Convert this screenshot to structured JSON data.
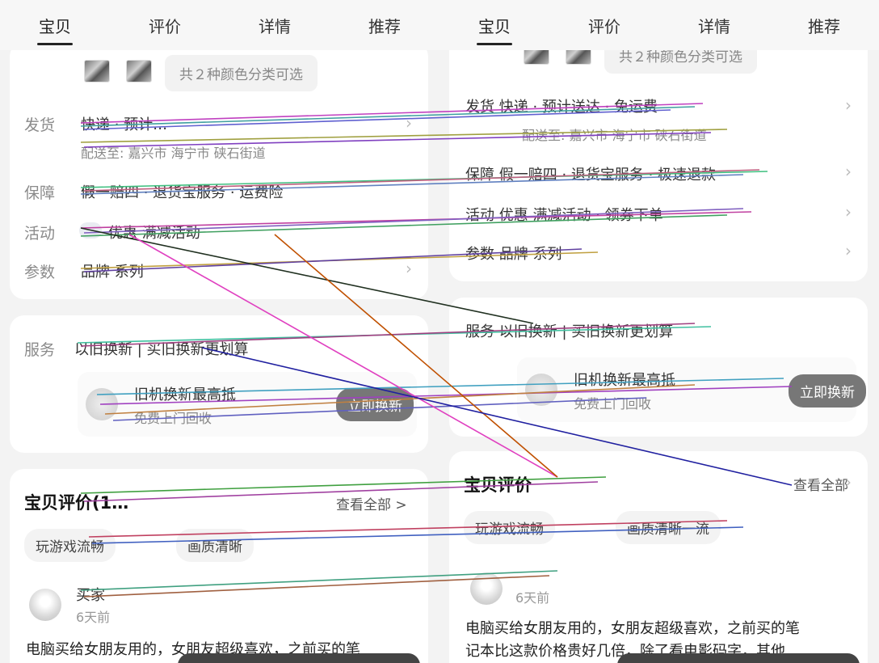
{
  "tabs": [
    "宝贝",
    "评价",
    "详情",
    "推荐"
  ],
  "left": {
    "color_tip": "共２种颜色分类可选",
    "ship_label": "发货",
    "ship_value": "快递 · 预计…",
    "ship_to": "配送至: 嘉兴市 海宁市 硖石街道",
    "guarantee_label": "保障",
    "guarantee_value": "假一赔四 · 退货宝服务 · 运费险",
    "activity_label": "活动",
    "activity_value": "优惠 满减活动",
    "params_label": "参数",
    "params_value": "品牌 系列",
    "service_label": "服务",
    "service_value": "以旧换新 | 买旧换新更划算",
    "trade_title": "旧机换新最高抵",
    "trade_sub": "免费上门回收",
    "trade_button": "立即换新",
    "reviews_title": "宝贝评价(1…",
    "reviews_link": "查看全部 >",
    "tag1": "玩游戏流畅",
    "tag2": "画质清晰",
    "reviewer": "买家",
    "time": "6天前",
    "review_text": "电脑买给女朋友用的，女朋友超级喜欢，之前买的笔"
  },
  "right": {
    "color_tip": "共２种颜色分类可选",
    "ship_value": "发货 快递 · 预计送达 · 免运费",
    "ship_to": "配送至: 嘉兴市 海宁市 硖石街道",
    "guarantee_value": "保障 假一赔四 · 退货宝服务 · 极速退款",
    "activity_value": "活动 优惠 满减活动 · 领券下单",
    "params_value": "参数 品牌 系列",
    "service_value": "服务 以旧换新 | 买旧换新更划算",
    "trade_title": "旧机换新最高抵",
    "trade_sub": "免费上门回收",
    "trade_button": "立即换新",
    "reviews_title": "宝贝评价",
    "reviews_link": "查看全部",
    "tag1": "玩游戏流畅",
    "tag2": "画质清晰一流",
    "time": "6天前",
    "review_line1": "电脑买给女朋友用的，女朋友超级喜欢，之前买的笔",
    "review_line2": "记本比这款价格贵好几倍，除了看电影码字，其他"
  }
}
